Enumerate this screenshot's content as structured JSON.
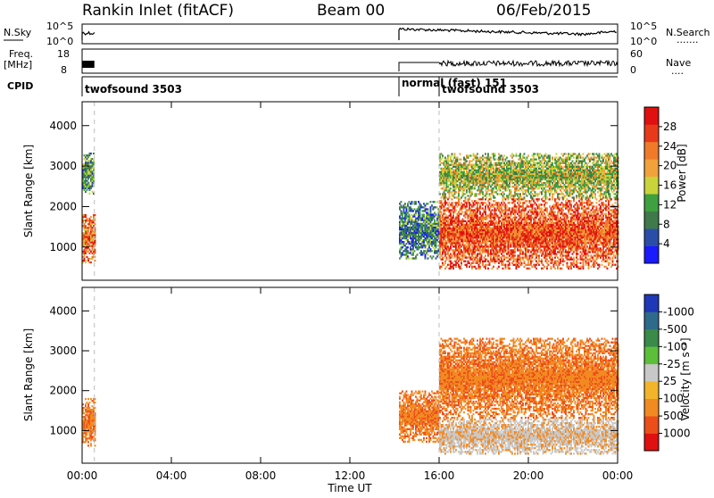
{
  "header": {
    "title": "Rankin Inlet (fitACF)",
    "beam": "Beam 00",
    "date": "06/Feb/2015"
  },
  "strip": {
    "nsky_label": "N.Sky",
    "nsky_ticks": [
      "10^5",
      "10^0"
    ],
    "nsearch_label": "N.Search",
    "nsearch_ticks": [
      "10^5",
      "10^0"
    ],
    "freq_label": "Freq.",
    "freq_unit": "[MHz]",
    "freq_ticks": [
      "18",
      "8"
    ],
    "nave_label": "Nave",
    "nave_ticks": [
      "60",
      "0"
    ],
    "cpid_label": "CPID",
    "cpid_segments": [
      {
        "name": "twofsound 3503",
        "start_hour": 0.0
      },
      {
        "name": "normal (fast) 151",
        "start_hour": 14.2
      },
      {
        "name": "twofsound 3503",
        "start_hour": 16.0
      }
    ]
  },
  "colors": {
    "power": [
      "#1a1aff",
      "#2a4ea8",
      "#3f7a4a",
      "#3fa03f",
      "#c8d43a",
      "#f2a23a",
      "#f07a2a",
      "#e83a1a",
      "#e01010"
    ],
    "velocity": [
      "#1e38b8",
      "#2e6a8a",
      "#3a8a4a",
      "#5cbf3a",
      "#c8c8c8",
      "#f2b42a",
      "#f28a22",
      "#ec4e1a",
      "#e01010"
    ],
    "ground_scatter": "#c8c8c8"
  },
  "chart_data": [
    {
      "type": "heatmap",
      "name": "power",
      "xlabel": "",
      "ylabel": "Slant Range [km]",
      "xlim": [
        0,
        24
      ],
      "ylim": [
        180,
        4590
      ],
      "yticks": [
        "1000",
        "2000",
        "3000",
        "4000"
      ],
      "colorbar": {
        "label": "Power [dB]",
        "ticks": [
          "4",
          "8",
          "12",
          "16",
          "20",
          "24",
          "28"
        ],
        "range": [
          0,
          30
        ]
      },
      "regions": [
        {
          "t0": 0.0,
          "t1": 0.55,
          "r0": 600,
          "r1": 1800,
          "level": 22
        },
        {
          "t0": 0.0,
          "t1": 0.5,
          "r0": 2300,
          "r1": 3300,
          "level": 10
        },
        {
          "t0": 14.2,
          "t1": 16.0,
          "r0": 700,
          "r1": 2100,
          "level": 8
        },
        {
          "t0": 16.0,
          "t1": 24.0,
          "r0": 450,
          "r1": 2200,
          "level": 24
        },
        {
          "t0": 16.0,
          "t1": 24.0,
          "r0": 2200,
          "r1": 3300,
          "level": 14
        }
      ]
    },
    {
      "type": "heatmap",
      "name": "velocity",
      "xlabel": "Time UT",
      "ylabel": "Slant Range [km]",
      "xlim": [
        0,
        24
      ],
      "ylim": [
        180,
        4590
      ],
      "xticks": [
        "00:00",
        "04:00",
        "08:00",
        "12:00",
        "16:00",
        "20:00",
        "00:00"
      ],
      "yticks": [
        "1000",
        "2000",
        "3000",
        "4000"
      ],
      "colorbar": {
        "label": "Velocity [m s^-1]",
        "ticks": [
          "1000",
          "500",
          "100",
          "25",
          "-25",
          "-100",
          "-500",
          "-1000"
        ]
      },
      "regions": [
        {
          "t0": 0.0,
          "t1": 0.55,
          "r0": 600,
          "r1": 1800,
          "level": -300
        },
        {
          "t0": 14.2,
          "t1": 16.0,
          "r0": 700,
          "r1": 2000,
          "level": -600
        },
        {
          "t0": 16.0,
          "t1": 24.0,
          "r0": 400,
          "r1": 1300,
          "level": 0
        },
        {
          "t0": 16.0,
          "t1": 24.0,
          "r0": 1300,
          "r1": 3300,
          "level": -200
        }
      ]
    }
  ]
}
